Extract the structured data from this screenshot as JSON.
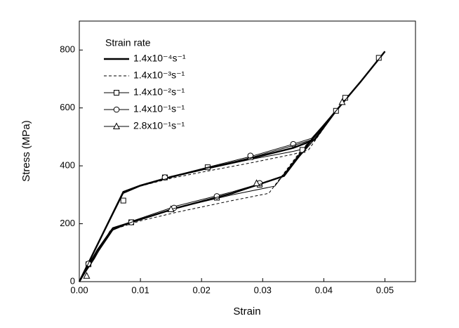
{
  "chart_data": {
    "type": "line",
    "x_label": "Strain",
    "y_label": "Stress (MPa)",
    "legend_title": "Strain rate",
    "xlim": [
      0,
      0.055
    ],
    "ylim": [
      0,
      900
    ],
    "xticks": [
      {
        "value": 0,
        "label": "0.00"
      },
      {
        "value": 0.01,
        "label": "0.01"
      },
      {
        "value": 0.02,
        "label": "0.02"
      },
      {
        "value": 0.03,
        "label": "0.03"
      },
      {
        "value": 0.04,
        "label": "0.04"
      },
      {
        "value": 0.05,
        "label": "0.05"
      }
    ],
    "yticks": [
      0,
      200,
      400,
      600,
      800
    ],
    "series": [
      {
        "name": "1.4x10⁻⁴s⁻¹",
        "color": "#000000",
        "line_width": 2.4,
        "dash": "none",
        "marker": "none",
        "x": [
          0,
          0.0072,
          0.01,
          0.015,
          0.021,
          0.028,
          0.035,
          0.0385,
          0.042,
          0.046,
          0.05,
          0.046,
          0.042,
          0.038,
          0.0335,
          0.025,
          0.016,
          0.01,
          0.0055,
          0.003,
          0
        ],
        "values": [
          0,
          310,
          332,
          362,
          392,
          425,
          462,
          490,
          590,
          690,
          795,
          690,
          590,
          490,
          365,
          305,
          255,
          215,
          185,
          110,
          0
        ],
        "marker_x": [],
        "marker_values": []
      },
      {
        "name": "1.4x10⁻³s⁻¹",
        "color": "#000000",
        "line_width": 1,
        "dash": "4,3",
        "marker": "none",
        "x": [
          0,
          0.0072,
          0.01,
          0.015,
          0.021,
          0.028,
          0.035,
          0.0375,
          0.042,
          0.046,
          0.05,
          0.046,
          0.042,
          0.036,
          0.031,
          0.025,
          0.016,
          0.01,
          0.0055,
          0.003,
          0
        ],
        "values": [
          0,
          310,
          330,
          357,
          382,
          410,
          440,
          455,
          590,
          690,
          795,
          690,
          590,
          445,
          305,
          280,
          240,
          210,
          180,
          105,
          0
        ],
        "marker_x": [],
        "marker_values": []
      },
      {
        "name": "1.4x10⁻²s⁻¹",
        "color": "#000000",
        "line_width": 1,
        "dash": "none",
        "marker": "square",
        "x": [
          0,
          0.0072,
          0.01,
          0.015,
          0.021,
          0.028,
          0.035,
          0.037,
          0.042,
          0.046,
          0.05,
          0.046,
          0.042,
          0.0365,
          0.032,
          0.025,
          0.016,
          0.0085,
          0.0055,
          0.003,
          0
        ],
        "values": [
          0,
          305,
          330,
          360,
          390,
          422,
          450,
          460,
          590,
          690,
          795,
          690,
          590,
          455,
          330,
          300,
          255,
          205,
          178,
          100,
          0
        ],
        "marker_x": [
          0.0015,
          0.0072,
          0.014,
          0.021,
          0.028,
          0.0365,
          0.042,
          0.0435,
          0.049,
          0.0295,
          0.0225,
          0.0085
        ],
        "marker_values": [
          60,
          280,
          360,
          395,
          430,
          455,
          590,
          635,
          773,
          335,
          290,
          205
        ]
      },
      {
        "name": "1.4x10⁻¹s⁻¹",
        "color": "#000000",
        "line_width": 1,
        "dash": "none",
        "marker": "circle",
        "x": [
          0,
          0.0072,
          0.01,
          0.015,
          0.021,
          0.028,
          0.035,
          0.038,
          0.042,
          0.046,
          0.05,
          0.046,
          0.042,
          0.038,
          0.033,
          0.025,
          0.016,
          0.0085,
          0.0055,
          0.003,
          0
        ],
        "values": [
          0,
          308,
          333,
          363,
          395,
          432,
          475,
          495,
          590,
          690,
          795,
          690,
          590,
          480,
          360,
          310,
          262,
          208,
          180,
          105,
          0
        ],
        "marker_x": [
          0.0015,
          0.014,
          0.028,
          0.035,
          0.0295,
          0.0225,
          0.0155,
          0.0085
        ],
        "marker_values": [
          62,
          360,
          435,
          475,
          340,
          295,
          255,
          205
        ]
      },
      {
        "name": "2.8x10⁻¹s⁻¹",
        "color": "#000000",
        "line_width": 1,
        "dash": "none",
        "marker": "triangle",
        "x": [
          0,
          0.0072,
          0.01,
          0.015,
          0.021,
          0.028,
          0.035,
          0.038,
          0.042,
          0.046,
          0.05,
          0.046,
          0.042,
          0.038,
          0.033,
          0.025,
          0.015,
          0.0085,
          0.005,
          0.0025,
          0
        ],
        "values": [
          0,
          305,
          330,
          360,
          392,
          428,
          470,
          490,
          590,
          690,
          795,
          690,
          590,
          480,
          360,
          305,
          250,
          205,
          175,
          80,
          0
        ],
        "marker_x": [
          0.0012,
          0.015,
          0.029,
          0.043
        ],
        "marker_values": [
          20,
          250,
          340,
          620
        ]
      }
    ]
  }
}
